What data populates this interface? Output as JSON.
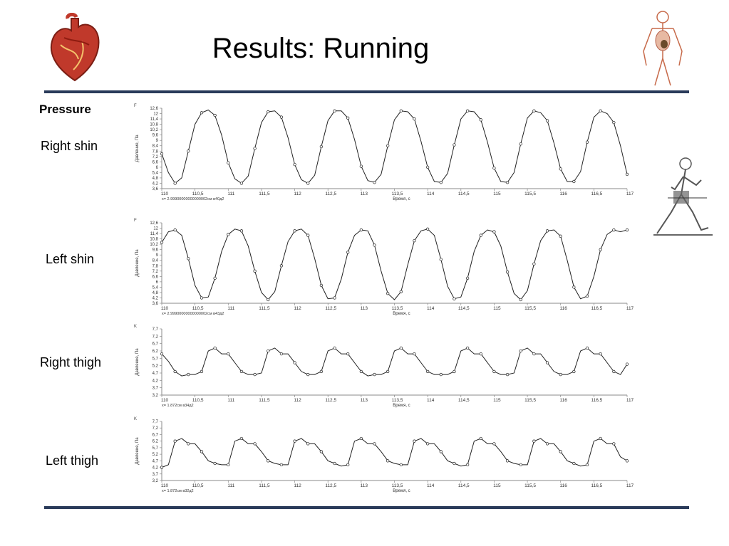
{
  "title": "Results: Running",
  "pressure_label": "Pressure",
  "icons": {
    "heart": "heart-icon",
    "body": "anatomy-figure-icon",
    "runner": "runner-icon"
  },
  "colors": {
    "rule": "#2a3b5a",
    "line": "#222222",
    "heart": "#c0392b"
  },
  "chart_data": [
    {
      "type": "line",
      "row_label": "Right shin",
      "unit_marker": "F",
      "ylabel": "Давление, Па",
      "xlabel": "Время, с",
      "footer": "x= 2.99900000000000002см в40д2",
      "xlim": [
        110,
        117
      ],
      "ylim": [
        3.6,
        12.6
      ],
      "x_ticks": [
        "110",
        "110,5",
        "111",
        "111,5",
        "112",
        "112,5",
        "113",
        "113,5",
        "114",
        "114,5",
        "115",
        "115,5",
        "116",
        "116,5",
        "117"
      ],
      "y_ticks": [
        "12,6",
        "12",
        "11,4",
        "10,8",
        "10,2",
        "9,6",
        "9",
        "8,4",
        "7,8",
        "7,2",
        "6,6",
        "6",
        "5,4",
        "4,8",
        "4,2",
        "3,6"
      ],
      "x": [
        110,
        110.1,
        110.2,
        110.3,
        110.4,
        110.5,
        110.6,
        110.7,
        110.8,
        110.9,
        111,
        111.1,
        111.2,
        111.3,
        111.4,
        111.5,
        111.6,
        111.7,
        111.8,
        111.9,
        112,
        112.1,
        112.2,
        112.3,
        112.4,
        112.5,
        112.6,
        112.7,
        112.8,
        112.9,
        113,
        113.1,
        113.2,
        113.3,
        113.4,
        113.5,
        113.6,
        113.7,
        113.8,
        113.9,
        114,
        114.1,
        114.2,
        114.3,
        114.4,
        114.5,
        114.6,
        114.7,
        114.8,
        114.9,
        115,
        115.1,
        115.2,
        115.3,
        115.4,
        115.5,
        115.6,
        115.7,
        115.8,
        115.9,
        116,
        116.1,
        116.2,
        116.3,
        116.4,
        116.5,
        116.6,
        116.7,
        116.8,
        116.9,
        117
      ],
      "y": [
        7.5,
        5.4,
        4.2,
        4.8,
        7.8,
        10.8,
        12.1,
        12.4,
        11.8,
        9.6,
        6.5,
        4.7,
        4.2,
        5.0,
        8.1,
        11.0,
        12.2,
        12.3,
        11.6,
        9.3,
        6.3,
        4.6,
        4.2,
        5.1,
        8.3,
        11.2,
        12.3,
        12.3,
        11.5,
        9.1,
        6.1,
        4.5,
        4.3,
        5.2,
        8.4,
        11.3,
        12.3,
        12.2,
        11.4,
        8.9,
        6.0,
        4.4,
        4.3,
        5.3,
        8.5,
        11.4,
        12.3,
        12.2,
        11.3,
        8.8,
        5.9,
        4.4,
        4.3,
        5.4,
        8.6,
        11.5,
        12.3,
        12.1,
        11.2,
        8.7,
        5.8,
        4.4,
        4.4,
        5.5,
        8.8,
        11.6,
        12.3,
        12.0,
        11.0,
        8.4,
        5.2
      ]
    },
    {
      "type": "line",
      "row_label": "Left shin",
      "unit_marker": "F",
      "ylabel": "Давление, Па",
      "xlabel": "Время, с",
      "footer": "x= 2.99900000000000002см в43д2",
      "xlim": [
        110,
        117
      ],
      "ylim": [
        3.6,
        12.6
      ],
      "x_ticks": [
        "110",
        "110,5",
        "111",
        "111,5",
        "112",
        "112,5",
        "113",
        "113,5",
        "114",
        "114,5",
        "115",
        "115,5",
        "116",
        "116,5",
        "117"
      ],
      "y_ticks": [
        "12,6",
        "12",
        "11,4",
        "10,8",
        "10,2",
        "9,6",
        "9",
        "8,4",
        "7,8",
        "7,2",
        "6,6",
        "6",
        "5,4",
        "4,8",
        "4,2",
        "3,6"
      ],
      "x": [
        110,
        110.1,
        110.2,
        110.3,
        110.4,
        110.5,
        110.6,
        110.7,
        110.8,
        110.9,
        111,
        111.1,
        111.2,
        111.3,
        111.4,
        111.5,
        111.6,
        111.7,
        111.8,
        111.9,
        112,
        112.1,
        112.2,
        112.3,
        112.4,
        112.5,
        112.6,
        112.7,
        112.8,
        112.9,
        113,
        113.1,
        113.2,
        113.3,
        113.4,
        113.5,
        113.6,
        113.7,
        113.8,
        113.9,
        114,
        114.1,
        114.2,
        114.3,
        114.4,
        114.5,
        114.6,
        114.7,
        114.8,
        114.9,
        115,
        115.1,
        115.2,
        115.3,
        115.4,
        115.5,
        115.6,
        115.7,
        115.8,
        115.9,
        116,
        116.1,
        116.2,
        116.3,
        116.4,
        116.5,
        116.6,
        116.7,
        116.8,
        116.9,
        117
      ],
      "y": [
        10.4,
        11.6,
        11.8,
        11.2,
        8.6,
        5.6,
        4.2,
        4.3,
        6.4,
        9.4,
        11.3,
        11.9,
        11.7,
        10.0,
        7.2,
        4.8,
        4.0,
        4.9,
        7.8,
        10.5,
        11.7,
        11.9,
        11.2,
        8.6,
        5.6,
        4.1,
        4.2,
        6.3,
        9.3,
        11.2,
        11.8,
        11.7,
        10.1,
        7.2,
        4.7,
        4.0,
        4.9,
        7.9,
        10.6,
        11.7,
        11.9,
        11.2,
        8.5,
        5.5,
        4.1,
        4.3,
        6.4,
        9.4,
        11.2,
        11.8,
        11.6,
        10.0,
        7.1,
        4.7,
        4.0,
        5.0,
        8.0,
        10.6,
        11.7,
        11.8,
        11.1,
        8.4,
        5.4,
        4.1,
        4.4,
        6.6,
        9.6,
        11.3,
        11.8,
        11.6,
        11.8
      ]
    },
    {
      "type": "line",
      "row_label": "Right thigh",
      "unit_marker": "K",
      "ylabel": "Давление, Па",
      "xlabel": "Время, с",
      "footer": "x= 1.872см в34д2",
      "xlim": [
        110,
        117
      ],
      "ylim": [
        3.2,
        7.7
      ],
      "x_ticks": [
        "110",
        "110,5",
        "111",
        "111,5",
        "112",
        "112,5",
        "113",
        "113,5",
        "114",
        "114,5",
        "115",
        "115,5",
        "116",
        "116,5",
        "117"
      ],
      "y_ticks": [
        "7,7",
        "7,2",
        "6,7",
        "6,2",
        "5,7",
        "5,2",
        "4,7",
        "4,2",
        "3,7",
        "3,2"
      ],
      "x": [
        110,
        110.1,
        110.2,
        110.3,
        110.4,
        110.5,
        110.6,
        110.7,
        110.8,
        110.9,
        111,
        111.1,
        111.2,
        111.3,
        111.4,
        111.5,
        111.6,
        111.7,
        111.8,
        111.9,
        112,
        112.1,
        112.2,
        112.3,
        112.4,
        112.5,
        112.6,
        112.7,
        112.8,
        112.9,
        113,
        113.1,
        113.2,
        113.3,
        113.4,
        113.5,
        113.6,
        113.7,
        113.8,
        113.9,
        114,
        114.1,
        114.2,
        114.3,
        114.4,
        114.5,
        114.6,
        114.7,
        114.8,
        114.9,
        115,
        115.1,
        115.2,
        115.3,
        115.4,
        115.5,
        115.6,
        115.7,
        115.8,
        115.9,
        116,
        116.1,
        116.2,
        116.3,
        116.4,
        116.5,
        116.6,
        116.7,
        116.8,
        116.9,
        117
      ],
      "y": [
        6.0,
        5.5,
        4.8,
        4.5,
        4.6,
        4.6,
        4.8,
        6.2,
        6.4,
        6.0,
        6.0,
        5.4,
        4.8,
        4.6,
        4.6,
        4.7,
        6.2,
        6.4,
        6.0,
        6.0,
        5.4,
        4.8,
        4.6,
        4.6,
        4.8,
        6.2,
        6.4,
        6.0,
        6.0,
        5.4,
        4.8,
        4.5,
        4.6,
        4.6,
        4.8,
        6.2,
        6.4,
        6.0,
        6.0,
        5.4,
        4.8,
        4.6,
        4.6,
        4.6,
        4.8,
        6.2,
        6.4,
        6.0,
        6.0,
        5.4,
        4.8,
        4.6,
        4.6,
        4.7,
        6.2,
        6.4,
        6.0,
        6.0,
        5.4,
        4.8,
        4.6,
        4.6,
        4.8,
        6.2,
        6.4,
        6.0,
        6.0,
        5.4,
        4.8,
        4.6,
        5.3
      ]
    },
    {
      "type": "line",
      "row_label": "Left thigh",
      "unit_marker": "K",
      "ylabel": "Давление, Па",
      "xlabel": "Время, с",
      "footer": "x= 1.872см в32д2",
      "xlim": [
        110,
        117
      ],
      "ylim": [
        3.2,
        7.7
      ],
      "x_ticks": [
        "110",
        "110,5",
        "111",
        "111,5",
        "112",
        "112,5",
        "113",
        "113,5",
        "114",
        "114,5",
        "115",
        "115,5",
        "116",
        "116,5",
        "117"
      ],
      "y_ticks": [
        "7,7",
        "7,2",
        "6,7",
        "6,2",
        "5,7",
        "5,2",
        "4,7",
        "4,2",
        "3,7",
        "3,2"
      ],
      "x": [
        110,
        110.1,
        110.2,
        110.3,
        110.4,
        110.5,
        110.6,
        110.7,
        110.8,
        110.9,
        111,
        111.1,
        111.2,
        111.3,
        111.4,
        111.5,
        111.6,
        111.7,
        111.8,
        111.9,
        112,
        112.1,
        112.2,
        112.3,
        112.4,
        112.5,
        112.6,
        112.7,
        112.8,
        112.9,
        113,
        113.1,
        113.2,
        113.3,
        113.4,
        113.5,
        113.6,
        113.7,
        113.8,
        113.9,
        114,
        114.1,
        114.2,
        114.3,
        114.4,
        114.5,
        114.6,
        114.7,
        114.8,
        114.9,
        115,
        115.1,
        115.2,
        115.3,
        115.4,
        115.5,
        115.6,
        115.7,
        115.8,
        115.9,
        116,
        116.1,
        116.2,
        116.3,
        116.4,
        116.5,
        116.6,
        116.7,
        116.8,
        116.9,
        117
      ],
      "y": [
        4.2,
        4.4,
        6.2,
        6.4,
        6.0,
        6.0,
        5.4,
        4.7,
        4.5,
        4.4,
        4.4,
        6.2,
        6.4,
        6.0,
        6.0,
        5.4,
        4.7,
        4.5,
        4.4,
        4.4,
        6.2,
        6.4,
        6.0,
        6.0,
        5.4,
        4.7,
        4.5,
        4.3,
        4.4,
        6.2,
        6.4,
        6.0,
        6.0,
        5.4,
        4.7,
        4.5,
        4.4,
        4.4,
        6.2,
        6.4,
        6.0,
        6.0,
        5.4,
        4.7,
        4.5,
        4.3,
        4.4,
        6.2,
        6.4,
        6.0,
        6.0,
        5.4,
        4.7,
        4.5,
        4.4,
        4.4,
        6.2,
        6.4,
        6.0,
        6.0,
        5.4,
        4.7,
        4.5,
        4.3,
        4.4,
        6.2,
        6.4,
        6.0,
        6.0,
        5.0,
        4.7
      ]
    }
  ]
}
